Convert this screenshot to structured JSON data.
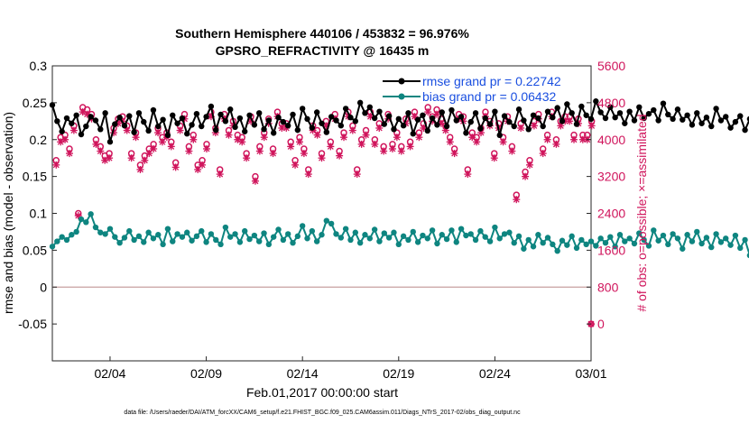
{
  "colors": {
    "rmse": "#000000",
    "bias": "#0e8580",
    "obs": "#d0155c",
    "legend_text": "#1a4fe0",
    "zero_line": "#c8a0a0"
  },
  "chart_data": {
    "type": "line",
    "title": "Southern Hemisphere 440106 / 453832 = 96.976%",
    "subtitle": "GPSRO_REFRACTIVITY @ 16435 m",
    "xlabel": "Feb.01,2017 00:00:00 start",
    "ylabel": "rmse and bias (model - observation)",
    "y2label": "# of obs: o=possible; ×=assimilated",
    "footnote": "data file: /Users/raeder/DAI/ATM_forcXX/CAM6_setup/f.e21.FHIST_BGC.f09_025.CAM6assim.011/Diags_NTrS_2017-02/obs_diag_output.nc",
    "x_range": [
      1.0,
      29.0
    ],
    "x_ticks": [
      4,
      9,
      14,
      19,
      24,
      29
    ],
    "x_tick_labels": [
      "02/04",
      "02/09",
      "02/14",
      "02/19",
      "02/24",
      "03/01"
    ],
    "ylim": [
      -0.1,
      0.3
    ],
    "y_ticks": [
      -0.05,
      0,
      0.05,
      0.1,
      0.15,
      0.2,
      0.25,
      0.3
    ],
    "y_tick_labels": [
      "-0.05",
      "0",
      "0.05",
      "0.1",
      "0.15",
      "0.2",
      "0.25",
      "0.3"
    ],
    "y2lim": [
      -800,
      5600
    ],
    "y2_ticks": [
      0,
      800,
      1600,
      2400,
      3200,
      4000,
      4800,
      5600
    ],
    "y2_tick_labels": [
      "0",
      "800",
      "1600",
      "2400",
      "3200",
      "4000",
      "4800",
      "5600"
    ],
    "legend": [
      {
        "name": "rmse grand pr = 0.22742",
        "series": "rmse"
      },
      {
        "name": "bias grand pr = 0.06432",
        "series": "bias"
      }
    ],
    "legend_position": "top-right",
    "x_start": 1.0,
    "x_step": 0.25,
    "series": [
      {
        "name": "rmse",
        "axis": "left",
        "values": [
          0.247,
          0.225,
          0.211,
          0.229,
          0.222,
          0.233,
          0.207,
          0.218,
          0.231,
          0.226,
          0.214,
          0.236,
          0.197,
          0.221,
          0.23,
          0.219,
          0.232,
          0.21,
          0.236,
          0.224,
          0.212,
          0.24,
          0.218,
          0.227,
          0.206,
          0.233,
          0.222,
          0.229,
          0.208,
          0.22,
          0.235,
          0.218,
          0.231,
          0.245,
          0.213,
          0.234,
          0.225,
          0.241,
          0.217,
          0.229,
          0.211,
          0.233,
          0.22,
          0.236,
          0.214,
          0.226,
          0.209,
          0.23,
          0.224,
          0.219,
          0.234,
          0.213,
          0.242,
          0.228,
          0.216,
          0.237,
          0.222,
          0.21,
          0.231,
          0.226,
          0.219,
          0.242,
          0.23,
          0.225,
          0.25,
          0.236,
          0.244,
          0.229,
          0.238,
          0.221,
          0.232,
          0.214,
          0.228,
          0.219,
          0.236,
          0.208,
          0.227,
          0.233,
          0.212,
          0.229,
          0.22,
          0.237,
          0.218,
          0.24,
          0.226,
          0.231,
          0.209,
          0.224,
          0.236,
          0.215,
          0.229,
          0.221,
          0.238,
          0.206,
          0.232,
          0.224,
          0.218,
          0.241,
          0.226,
          0.214,
          0.233,
          0.229,
          0.218,
          0.238,
          0.23,
          0.243,
          0.225,
          0.248,
          0.236,
          0.221,
          0.245,
          0.233,
          0.228,
          0.252,
          0.237,
          0.229,
          0.244,
          0.23,
          0.236,
          0.222,
          0.238,
          0.226,
          0.244,
          0.229,
          0.235,
          0.24,
          0.226,
          0.249,
          0.234,
          0.228,
          0.241,
          0.227,
          0.233,
          0.22,
          0.236,
          0.222,
          0.23,
          0.218,
          0.242,
          0.226,
          0.231,
          0.216,
          0.224,
          0.232,
          0.213,
          0.228,
          0.236,
          0.219,
          0.233,
          0.222,
          0.244,
          0.228,
          0.237,
          0.214,
          0.23,
          0.221,
          0.236,
          0.21,
          0.226,
          0.233,
          0.217,
          0.229,
          0.222,
          0.238,
          0.208,
          0.23,
          0.218,
          0.225,
          0.212,
          0.22,
          0.206,
          0.226,
          0.215,
          0.221,
          0.207,
          0.219,
          0.213,
          0.226,
          0.228,
          0.218,
          0.225,
          0.23,
          0.222,
          0.226,
          0.21,
          0.228,
          0.215,
          0.218,
          0.212,
          0.226,
          0.213,
          0.219,
          0.214,
          0.219,
          0.218,
          0.231,
          0.225,
          0.217,
          0.238,
          0.218,
          0.233,
          0.222,
          0.228,
          0.213,
          0.23,
          0.22,
          0.225,
          0.215,
          0.231,
          0.219,
          0.227,
          0.21,
          0.222,
          0.216,
          0.207,
          0.22,
          0.212,
          0.223,
          0.205,
          0.221,
          0.215,
          0.226,
          0.225,
          0.21,
          0.225
        ]
      },
      {
        "name": "bias",
        "axis": "left",
        "values": [
          0.055,
          0.062,
          0.068,
          0.064,
          0.071,
          0.075,
          0.092,
          0.088,
          0.099,
          0.081,
          0.074,
          0.072,
          0.079,
          0.068,
          0.06,
          0.067,
          0.076,
          0.064,
          0.069,
          0.061,
          0.074,
          0.066,
          0.071,
          0.058,
          0.079,
          0.062,
          0.072,
          0.068,
          0.074,
          0.063,
          0.069,
          0.076,
          0.061,
          0.072,
          0.064,
          0.058,
          0.081,
          0.068,
          0.072,
          0.061,
          0.076,
          0.065,
          0.07,
          0.062,
          0.073,
          0.058,
          0.068,
          0.078,
          0.064,
          0.072,
          0.06,
          0.069,
          0.083,
          0.066,
          0.076,
          0.062,
          0.071,
          0.09,
          0.086,
          0.072,
          0.067,
          0.079,
          0.064,
          0.074,
          0.06,
          0.071,
          0.066,
          0.078,
          0.062,
          0.073,
          0.067,
          0.074,
          0.058,
          0.069,
          0.064,
          0.075,
          0.061,
          0.07,
          0.066,
          0.077,
          0.059,
          0.071,
          0.065,
          0.077,
          0.061,
          0.079,
          0.07,
          0.072,
          0.064,
          0.076,
          0.068,
          0.062,
          0.081,
          0.066,
          0.072,
          0.074,
          0.06,
          0.069,
          0.052,
          0.064,
          0.055,
          0.071,
          0.06,
          0.067,
          0.058,
          0.049,
          0.063,
          0.057,
          0.069,
          0.053,
          0.064,
          0.058,
          0.062,
          0.056,
          0.066,
          0.06,
          0.068,
          0.055,
          0.071,
          0.062,
          0.066,
          0.059,
          0.073,
          0.064,
          0.056,
          0.077,
          0.063,
          0.07,
          0.058,
          0.072,
          0.066,
          0.052,
          0.071,
          0.062,
          0.075,
          0.059,
          0.067,
          0.054,
          0.072,
          0.061,
          0.066,
          0.057,
          0.07,
          0.053,
          0.064,
          0.043,
          0.058,
          0.036,
          0.057,
          0.069,
          0.061,
          0.047,
          0.067,
          0.056,
          0.074,
          0.06,
          0.066,
          0.071,
          0.062,
          0.078,
          0.065,
          0.072,
          0.058,
          0.067,
          0.074,
          0.063,
          0.08,
          0.068,
          0.073,
          0.078,
          0.096,
          0.085,
          0.067,
          0.08,
          0.061,
          0.069,
          0.075,
          0.06,
          0.071,
          0.066,
          0.057,
          0.068,
          0.074,
          0.061,
          0.077,
          0.07,
          0.072,
          0.082,
          0.066,
          0.085,
          0.072,
          0.068,
          0.076,
          0.071,
          0.084,
          0.064,
          0.073,
          0.078,
          0.066,
          0.081,
          0.069,
          0.073,
          0.063,
          0.071,
          0.066,
          0.079,
          0.071,
          0.065,
          0.092,
          0.077,
          0.071,
          0.074,
          0.086,
          0.068,
          0.083,
          0.075,
          0.063,
          0.077,
          0.069,
          0.081,
          0.061,
          0.072,
          0.075,
          0.065,
          0.083,
          0.068,
          0.073,
          0.061,
          0.076,
          0.055,
          0.061,
          0.052,
          0.058,
          0.046,
          0.049,
          0.04,
          0.034
        ]
      },
      {
        "name": "obs_possible",
        "axis": "right",
        "marker": "circle",
        "values": [
          3550,
          4050,
          4100,
          3800,
          4300,
          2400,
          4700,
          4650,
          4550,
          4000,
          3850,
          3650,
          3700,
          4250,
          4450,
          4500,
          4300,
          3700,
          4150,
          3450,
          3650,
          3800,
          3900,
          4250,
          4050,
          4150,
          3950,
          3500,
          4300,
          4550,
          3850,
          4100,
          3450,
          3550,
          3900,
          4600,
          4250,
          3350,
          4550,
          4200,
          4400,
          4100,
          4050,
          3700,
          4500,
          3200,
          3850,
          4150,
          4450,
          3800,
          4600,
          4350,
          4350,
          3950,
          3550,
          4050,
          3800,
          3350,
          4300,
          4200,
          3700,
          4400,
          3950,
          4550,
          3750,
          4150,
          4600,
          4300,
          3350,
          4000,
          4200,
          4600,
          4000,
          4350,
          3850,
          4550,
          3900,
          4150,
          3850,
          4450,
          3950,
          4600,
          4150,
          4350,
          4700,
          4500,
          4650,
          4450,
          4300,
          4050,
          3800,
          4550,
          4500,
          3350,
          4150,
          4050,
          4250,
          4600,
          4400,
          3700,
          4350,
          4050,
          4500,
          3850,
          2800,
          4350,
          3300,
          3550,
          4400,
          4550,
          3800,
          4100,
          4600,
          4000,
          4400,
          4500,
          4500,
          4100,
          4450,
          4100,
          4100,
          4400
        ]
      },
      {
        "name": "obs_assimilated",
        "axis": "right",
        "marker": "star",
        "values": [
          3450,
          3950,
          4000,
          3700,
          4200,
          2350,
          4600,
          4550,
          4450,
          3900,
          3750,
          3550,
          3600,
          4150,
          4350,
          4400,
          4200,
          3600,
          4050,
          3350,
          3550,
          3700,
          3800,
          4150,
          3950,
          4050,
          3850,
          3400,
          4200,
          4450,
          3750,
          4000,
          3350,
          3450,
          3800,
          4500,
          4150,
          3250,
          4450,
          4100,
          4300,
          4000,
          3950,
          3600,
          4400,
          3100,
          3750,
          4050,
          4350,
          3700,
          4500,
          4250,
          4250,
          3850,
          3450,
          3950,
          3700,
          3250,
          4200,
          4100,
          3600,
          4300,
          3850,
          4450,
          3650,
          4050,
          4500,
          4200,
          3250,
          3900,
          4100,
          4500,
          3900,
          4250,
          3750,
          4450,
          3800,
          4050,
          3750,
          4350,
          3850,
          4500,
          4050,
          4250,
          4600,
          4400,
          4550,
          4350,
          4200,
          3950,
          3700,
          4450,
          4400,
          3250,
          4050,
          3950,
          4150,
          4500,
          4300,
          3600,
          4250,
          3950,
          4400,
          3750,
          2700,
          4250,
          3200,
          3450,
          4300,
          4450,
          3700,
          4000,
          4500,
          3900,
          4300,
          4400,
          4400,
          4000,
          4350,
          4000,
          4000,
          4300
        ]
      }
    ],
    "obs_x_step": 0.23,
    "extra_markers": [
      {
        "name": "obs-at-zero",
        "x": 29.0,
        "y2": 0
      }
    ]
  }
}
